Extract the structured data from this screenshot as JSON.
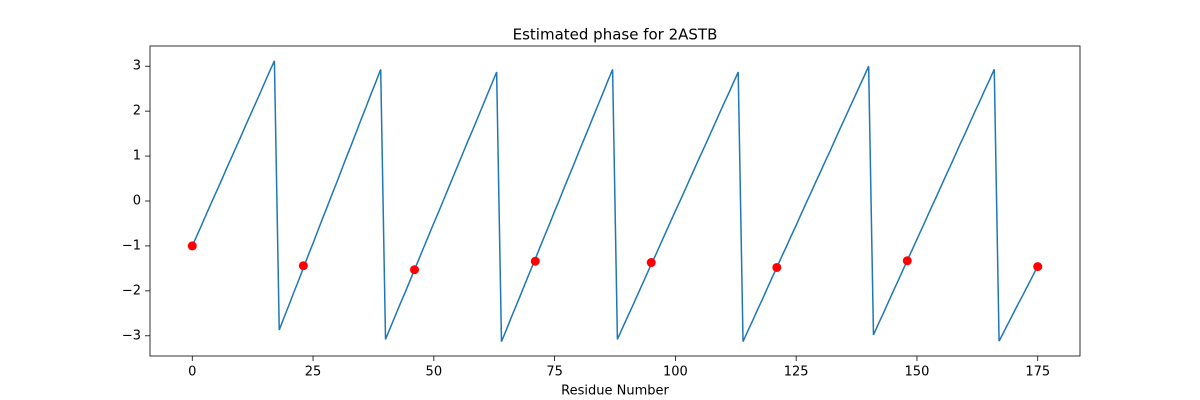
{
  "chart_data": {
    "type": "line",
    "title": "Estimated phase for 2ASTB",
    "xlabel": "Residue Number",
    "xlim": [
      -8.75,
      183.75
    ],
    "ylim": [
      -3.45,
      3.45
    ],
    "xticks": [
      0,
      25,
      50,
      75,
      100,
      125,
      150,
      175
    ],
    "yticks": [
      {
        "value": -3,
        "label": "−3"
      },
      {
        "value": -2,
        "label": "−2"
      },
      {
        "value": -1,
        "label": "−1"
      },
      0,
      1,
      2,
      3
    ],
    "x": [
      0,
      1,
      2,
      3,
      4,
      5,
      6,
      7,
      8,
      9,
      10,
      11,
      12,
      13,
      14,
      15,
      16,
      17,
      18,
      19,
      20,
      21,
      22,
      23,
      24,
      25,
      26,
      27,
      28,
      29,
      30,
      31,
      32,
      33,
      34,
      35,
      36,
      37,
      38,
      39,
      40,
      41,
      42,
      43,
      44,
      45,
      46,
      47,
      48,
      49,
      50,
      51,
      52,
      53,
      54,
      55,
      56,
      57,
      58,
      59,
      60,
      61,
      62,
      63,
      64,
      65,
      66,
      67,
      68,
      69,
      70,
      71,
      72,
      73,
      74,
      75,
      76,
      77,
      78,
      79,
      80,
      81,
      82,
      83,
      84,
      85,
      86,
      87,
      88,
      89,
      90,
      91,
      92,
      93,
      94,
      95,
      96,
      97,
      98,
      99,
      100,
      101,
      102,
      103,
      104,
      105,
      106,
      107,
      108,
      109,
      110,
      111,
      112,
      113,
      114,
      115,
      116,
      117,
      118,
      119,
      120,
      121,
      122,
      123,
      124,
      125,
      126,
      127,
      128,
      129,
      130,
      131,
      132,
      133,
      134,
      135,
      136,
      137,
      138,
      139,
      140,
      141,
      142,
      143,
      144,
      145,
      146,
      147,
      148,
      149,
      150,
      151,
      152,
      153,
      154,
      155,
      156,
      157,
      158,
      159,
      160,
      161,
      162,
      163,
      164,
      165,
      166,
      167,
      168,
      169,
      170,
      171,
      172,
      173,
      174,
      175
    ],
    "series": [
      {
        "color": "#1f77b4",
        "values": [
          -1.0,
          -0.76,
          -0.52,
          -0.27,
          -0.03,
          0.21,
          0.45,
          0.7,
          0.94,
          1.18,
          1.42,
          1.67,
          1.91,
          2.15,
          2.39,
          2.64,
          2.88,
          3.12,
          -2.87,
          -2.59,
          -2.32,
          -2.04,
          -1.77,
          -1.49,
          -1.21,
          -0.94,
          -0.66,
          -0.38,
          -0.11,
          0.17,
          0.44,
          0.72,
          1.0,
          1.27,
          1.55,
          1.83,
          2.1,
          2.38,
          2.65,
          2.93,
          -3.08,
          -2.82,
          -2.56,
          -2.3,
          -2.05,
          -1.79,
          -1.53,
          -1.27,
          -1.01,
          -0.75,
          -0.49,
          -0.24,
          0.02,
          0.28,
          0.54,
          0.8,
          1.06,
          1.32,
          1.57,
          1.83,
          2.09,
          2.35,
          2.61,
          2.87,
          -3.13,
          -2.87,
          -2.6,
          -2.34,
          -2.08,
          -1.81,
          -1.55,
          -1.29,
          -1.02,
          -0.76,
          -0.5,
          -0.23,
          0.03,
          0.3,
          0.56,
          0.82,
          1.09,
          1.35,
          1.61,
          1.88,
          2.14,
          2.4,
          2.67,
          2.93,
          -3.08,
          -2.84,
          -2.6,
          -2.37,
          -2.13,
          -1.89,
          -1.65,
          -1.41,
          -1.18,
          -0.94,
          -0.7,
          -0.46,
          -0.22,
          0.01,
          0.25,
          0.49,
          0.73,
          0.97,
          1.2,
          1.44,
          1.68,
          1.92,
          2.16,
          2.39,
          2.63,
          2.87,
          -3.13,
          -2.89,
          -2.66,
          -2.42,
          -2.19,
          -1.95,
          -1.71,
          -1.48,
          -1.24,
          -1.01,
          -0.77,
          -0.54,
          -0.3,
          -0.06,
          0.17,
          0.41,
          0.64,
          0.88,
          1.11,
          1.35,
          1.59,
          1.82,
          2.06,
          2.29,
          2.53,
          2.76,
          3.0,
          -2.98,
          -2.74,
          -2.51,
          -2.27,
          -2.03,
          -1.8,
          -1.56,
          -1.32,
          -1.09,
          -0.85,
          -0.62,
          -0.38,
          -0.14,
          0.09,
          0.33,
          0.57,
          0.8,
          1.04,
          1.28,
          1.51,
          1.75,
          1.99,
          2.22,
          2.46,
          2.69,
          2.93,
          -3.12,
          -2.91,
          -2.7,
          -2.49,
          -2.28,
          -2.08,
          -1.87,
          -1.66,
          -1.45
        ]
      }
    ],
    "markers": {
      "type": "scatter",
      "color": "#ff0000",
      "x": [
        0,
        23,
        46,
        71,
        95,
        121,
        148,
        175
      ],
      "values": [
        -1.0,
        -1.44,
        -1.53,
        -1.34,
        -1.37,
        -1.48,
        -1.33,
        -1.46
      ]
    }
  }
}
